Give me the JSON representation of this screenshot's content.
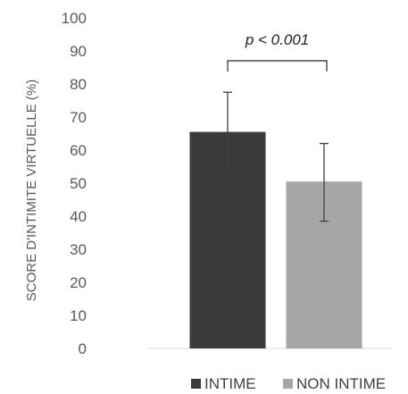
{
  "chart_data": {
    "type": "bar",
    "categories": [
      "INTIME",
      "NON INTIME"
    ],
    "series": [
      {
        "name": "INTIME",
        "values": [
          65.5,
          null
        ],
        "error_low": [
          53.5,
          null
        ],
        "error_high": [
          77.5,
          null
        ],
        "color": "#3a3a3a"
      },
      {
        "name": "NON INTIME",
        "values": [
          null,
          50.5
        ],
        "error_low": [
          null,
          38.5
        ],
        "error_high": [
          null,
          62.0
        ],
        "color": "#a6a6a6"
      }
    ],
    "title": "",
    "xlabel": "",
    "ylabel": "SCORE D'INTIMITE VIRTUELLE (%)",
    "ylim": [
      0,
      100
    ],
    "yticks": [
      0,
      10,
      20,
      30,
      40,
      50,
      60,
      70,
      80,
      90,
      100
    ],
    "grid": false,
    "legend_position": "bottom-right",
    "annotation": {
      "text": "p < 0.001",
      "between": [
        "INTIME",
        "NON INTIME"
      ]
    }
  }
}
